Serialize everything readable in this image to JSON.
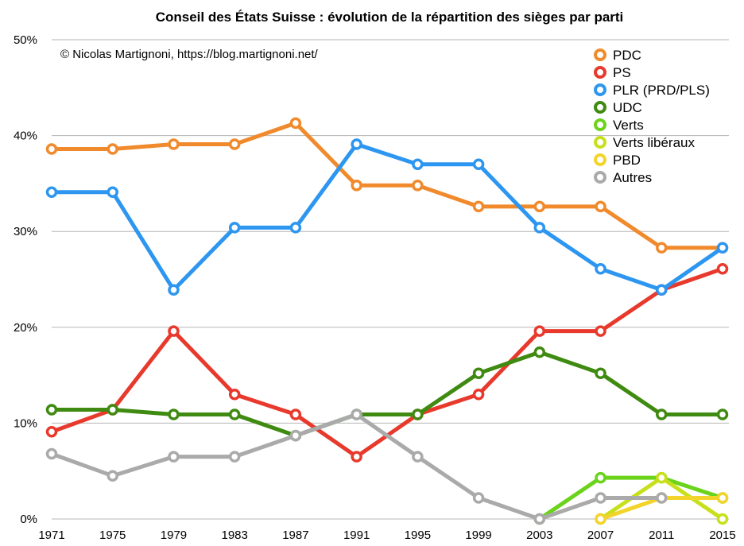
{
  "chart_data": {
    "type": "line",
    "title": "Conseil des États Suisse : évolution de la répartition des sièges par parti",
    "credit": "© Nicolas Martignoni, https://blog.martignoni.net/",
    "xlabel": "",
    "ylabel": "",
    "categories": [
      "1971",
      "1975",
      "1979",
      "1983",
      "1987",
      "1991",
      "1995",
      "1999",
      "2003",
      "2007",
      "2011",
      "2015"
    ],
    "ylim": [
      0,
      50
    ],
    "yticks": [
      0,
      10,
      20,
      30,
      40,
      50
    ],
    "ytick_labels": [
      "0%",
      "10%",
      "20%",
      "30%",
      "40%",
      "50%"
    ],
    "grid": true,
    "legend_position": "top-right",
    "series": [
      {
        "name": "PDC",
        "color": "#f08a2c",
        "values": [
          38.6,
          38.6,
          39.1,
          39.1,
          41.3,
          34.8,
          34.8,
          32.6,
          32.6,
          32.6,
          28.3,
          28.3
        ]
      },
      {
        "name": "PS",
        "color": "#e8392d",
        "values": [
          9.1,
          11.4,
          19.6,
          13.0,
          10.9,
          6.5,
          10.9,
          13.0,
          19.6,
          19.6,
          23.9,
          26.1
        ]
      },
      {
        "name": "PLR (PRD/PLS)",
        "color": "#2d96f0",
        "values": [
          34.1,
          34.1,
          23.9,
          30.4,
          30.4,
          39.1,
          37.0,
          37.0,
          30.4,
          26.1,
          23.9,
          28.3
        ]
      },
      {
        "name": "UDC",
        "color": "#3f8a10",
        "values": [
          11.4,
          11.4,
          10.9,
          10.9,
          8.7,
          10.9,
          10.9,
          15.2,
          17.4,
          15.2,
          10.9,
          10.9
        ]
      },
      {
        "name": "Verts",
        "color": "#6ad31a",
        "values": [
          null,
          null,
          null,
          null,
          null,
          null,
          null,
          null,
          0,
          4.3,
          4.3,
          2.2
        ]
      },
      {
        "name": "Verts libéraux",
        "color": "#c8e01c",
        "values": [
          null,
          null,
          null,
          null,
          null,
          null,
          null,
          null,
          null,
          0,
          4.3,
          0
        ]
      },
      {
        "name": "PBD",
        "color": "#f2d42a",
        "values": [
          null,
          null,
          null,
          null,
          null,
          null,
          null,
          null,
          null,
          0,
          2.2,
          2.2
        ]
      },
      {
        "name": "Autres",
        "color": "#aaaaaa",
        "values": [
          6.8,
          4.5,
          6.5,
          6.5,
          8.7,
          10.9,
          6.5,
          2.2,
          0,
          2.2,
          2.2,
          null
        ]
      }
    ]
  }
}
